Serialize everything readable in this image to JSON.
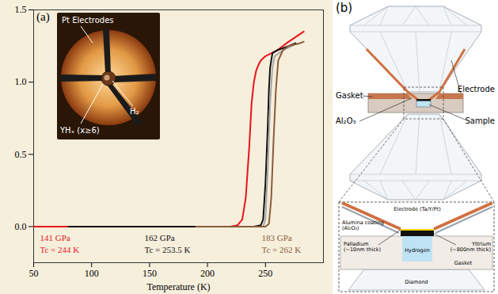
{
  "chart_data": {
    "type": "line",
    "panel_label": "(a)",
    "x_label": "Temperature (K)",
    "xlim": [
      50,
      300
    ],
    "xticks": [
      50,
      100,
      150,
      200,
      250
    ],
    "ylim": [
      -0.25,
      1.5
    ],
    "yticks": [
      {
        "value": 0,
        "label": "0.0"
      },
      {
        "value": 0.5,
        "label": "0.5"
      },
      {
        "value": 1,
        "label": "1.0"
      },
      {
        "value": 1.5,
        "label": "1.5"
      }
    ],
    "series": [
      {
        "name": "141 GPa",
        "tc_label": "Tc = 244 K",
        "color": "#e8141a",
        "x": [
          50,
          100,
          150,
          200,
          220,
          226,
          230,
          233,
          236,
          238,
          240,
          242,
          244,
          246,
          250,
          260,
          270,
          283
        ],
        "values": [
          0,
          0,
          0,
          0,
          0,
          0.01,
          0.05,
          0.2,
          0.55,
          0.85,
          1.0,
          1.08,
          1.12,
          1.15,
          1.18,
          1.22,
          1.28,
          1.35
        ]
      },
      {
        "name": "162 GPa",
        "tc_label": "Tc = 253.5 K",
        "color": "#111111",
        "x": [
          80,
          150,
          200,
          240,
          246,
          248,
          250,
          252,
          253,
          254,
          256,
          260,
          270,
          276
        ],
        "values": [
          0,
          0,
          0,
          0,
          0.01,
          0.05,
          0.3,
          0.7,
          0.95,
          1.1,
          1.2,
          1.22,
          1.25,
          1.27
        ]
      },
      {
        "name": null,
        "color": "#a8a8a8",
        "x": [
          195,
          230,
          248,
          250,
          252,
          254,
          256,
          258,
          265,
          275
        ],
        "values": [
          0,
          0,
          0,
          0.05,
          0.4,
          0.85,
          1.1,
          1.18,
          1.22,
          1.26
        ]
      },
      {
        "name": "183 GPa",
        "tc_label": "Tc = 262 K",
        "color": "#8b5a3c",
        "x": [
          190,
          230,
          250,
          253,
          255,
          257,
          259,
          261,
          265,
          270,
          280,
          283
        ],
        "values": [
          0,
          0,
          0,
          0.02,
          0.2,
          0.6,
          0.95,
          1.15,
          1.22,
          1.25,
          1.27,
          1.28
        ]
      }
    ]
  },
  "inset": {
    "labels": {
      "electrodes": "Pt Electrodes",
      "sample": "YHₓ (x≥6)",
      "hydrogen": "H₂"
    }
  },
  "panel_b": {
    "label": "(b)",
    "cell_labels": {
      "gasket": "Gasket",
      "electrode": "Electrode",
      "alumina": "Al₂O₃",
      "sample": "Sample"
    },
    "detail_labels": {
      "alumina": [
        "Alumina coating",
        "(Al₂O₃)"
      ],
      "electrode": [
        "Electrode (Ta/Y/Pt)"
      ],
      "palladium": [
        "Palladium",
        "(~10nm thick)"
      ],
      "hydrogen": [
        "Hydrogen"
      ],
      "yttrium": [
        "Yttrium",
        "(~800nm thick)"
      ],
      "gasket": [
        "Gasket"
      ],
      "diamond": [
        "Diamond"
      ]
    }
  }
}
